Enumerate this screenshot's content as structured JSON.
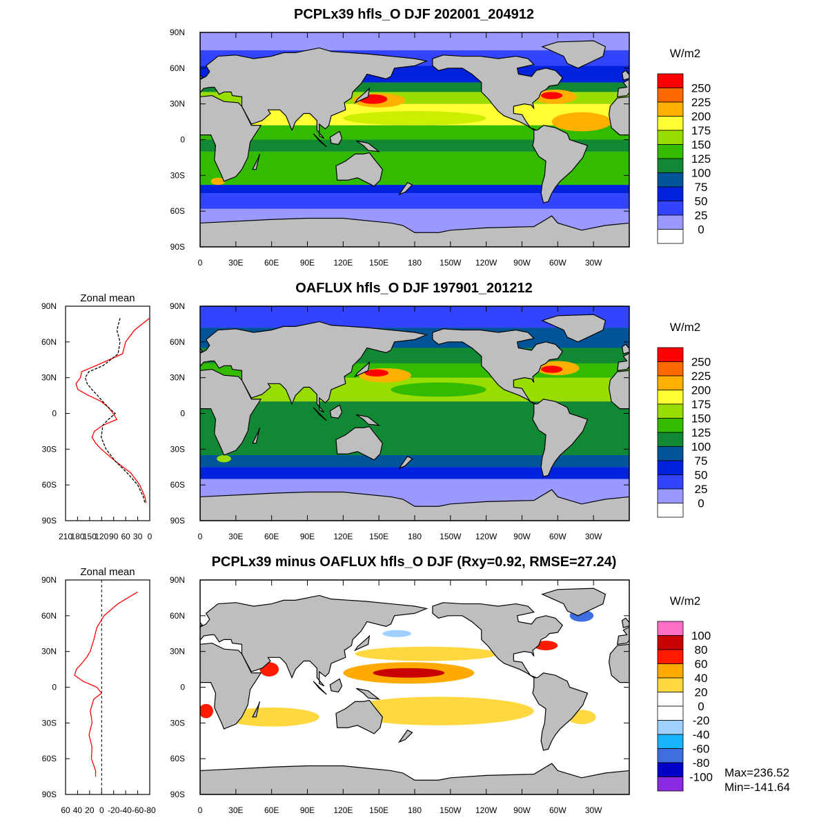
{
  "map_axes": {
    "lat_lim": [
      -90,
      90
    ],
    "lon_lim": [
      0,
      360
    ],
    "lat_ticks": [
      {
        "value": 90,
        "label": "90N"
      },
      {
        "value": 60,
        "label": "60N"
      },
      {
        "value": 30,
        "label": "30N"
      },
      {
        "value": 0,
        "label": "0"
      },
      {
        "value": -30,
        "label": "30S"
      },
      {
        "value": -60,
        "label": "60S"
      },
      {
        "value": -90,
        "label": "90S"
      }
    ],
    "lon_ticks": [
      {
        "value": 0,
        "label": "0"
      },
      {
        "value": 30,
        "label": "30E"
      },
      {
        "value": 60,
        "label": "60E"
      },
      {
        "value": 90,
        "label": "90E"
      },
      {
        "value": 120,
        "label": "120E"
      },
      {
        "value": 150,
        "label": "150E"
      },
      {
        "value": 180,
        "label": "180"
      },
      {
        "value": 210,
        "label": "150W"
      },
      {
        "value": 240,
        "label": "120W"
      },
      {
        "value": 270,
        "label": "90W"
      },
      {
        "value": 300,
        "label": "60W"
      },
      {
        "value": 330,
        "label": "30W"
      }
    ]
  },
  "panels": [
    {
      "title": "PCPLx39 hfls_O DJF 202001_204912",
      "colorbar": {
        "units": "W/m2",
        "levels": [
          250,
          225,
          200,
          175,
          150,
          125,
          100,
          75,
          50,
          25,
          0
        ],
        "colors": [
          "#ff0000",
          "#ff6a00",
          "#ffb000",
          "#ffff33",
          "#99dd00",
          "#33bb00",
          "#118833",
          "#005599",
          "#0022dd",
          "#3344ff",
          "#9999ff",
          "#ffffff"
        ]
      }
    },
    {
      "title": "OAFLUX hfls_O DJF 197901_201212",
      "colorbar": {
        "units": "W/m2",
        "levels": [
          250,
          225,
          200,
          175,
          150,
          125,
          100,
          75,
          50,
          25,
          0
        ],
        "colors": [
          "#ff0000",
          "#ff6a00",
          "#ffb000",
          "#ffff33",
          "#99dd00",
          "#33bb00",
          "#118833",
          "#005599",
          "#0022dd",
          "#3344ff",
          "#9999ff",
          "#ffffff"
        ]
      },
      "zonal_mean": {
        "title": "Zonal mean",
        "xlim": [
          210,
          0
        ],
        "xticks": [
          210,
          180,
          150,
          120,
          90,
          60,
          30,
          0
        ],
        "zero_line": false,
        "lat": [
          80,
          70,
          60,
          50,
          40,
          35,
          30,
          25,
          20,
          15,
          10,
          5,
          0,
          -5,
          -10,
          -15,
          -20,
          -25,
          -30,
          -40,
          -50,
          -60,
          -70,
          -75
        ],
        "series": [
          {
            "color": "#ff0000",
            "dash": false,
            "values": [
              0,
              38,
              60,
              68,
              135,
              170,
              173,
              184,
              179,
              152,
              121,
              103,
              91,
              82,
              117,
              138,
              144,
              135,
              121,
              86,
              47,
              25,
              12,
              9
            ]
          },
          {
            "color": "#000000",
            "dash": true,
            "values": [
              74,
              82,
              74,
              79,
              117,
              152,
              161,
              156,
              144,
              130,
              117,
              103,
              86,
              103,
              117,
              119,
              121,
              115,
              109,
              86,
              56,
              30,
              16,
              12
            ]
          }
        ]
      }
    },
    {
      "title": "PCPLx39 minus OAFLUX hfls_O DJF (Rxy=0.92, RMSE=27.24)",
      "colorbar": {
        "units": "W/m2",
        "levels": [
          100,
          80,
          60,
          40,
          20,
          0,
          -20,
          -40,
          -60,
          -80,
          -100
        ],
        "colors": [
          "#ff6ec7",
          "#c80000",
          "#ff1a00",
          "#ffaa00",
          "#ffd840",
          "#ffffff",
          "#ffffff",
          "#a0d0ff",
          "#18b4ff",
          "#3f6ee0",
          "#0000c8",
          "#8a2be2"
        ]
      },
      "zonal_mean": {
        "title": "Zonal mean",
        "xlim": [
          60,
          -80
        ],
        "xticks": [
          60,
          40,
          20,
          0,
          -20,
          -40,
          -60,
          -80
        ],
        "zero_line": true,
        "lat": [
          80,
          70,
          60,
          50,
          40,
          35,
          30,
          25,
          20,
          15,
          10,
          5,
          0,
          -5,
          -10,
          -15,
          -20,
          -25,
          -30,
          -40,
          -50,
          -60,
          -70,
          -75
        ],
        "series": [
          {
            "color": "#ff0000",
            "dash": false,
            "values": [
              -60,
              -27,
              -4,
              8,
              13,
              16,
              19,
              25,
              33,
              42,
              45,
              31,
              8,
              0,
              13,
              16,
              19,
              17,
              16,
              21,
              16,
              17,
              10,
              10
            ]
          }
        ]
      },
      "stats": {
        "max": "Max=236.52",
        "min": "Min=-141.64"
      }
    }
  ]
}
